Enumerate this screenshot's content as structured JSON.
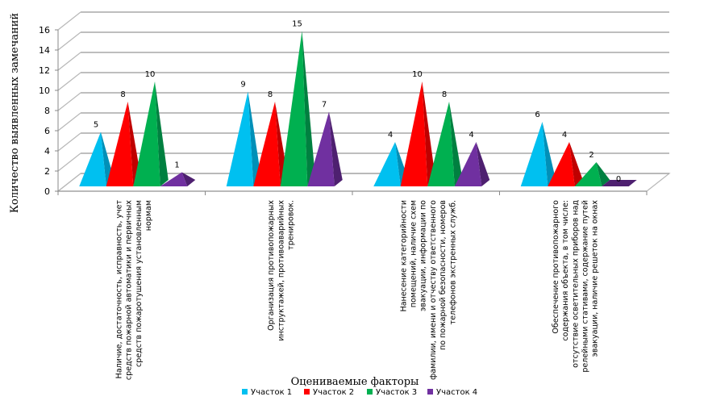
{
  "chart_data": {
    "type": "bar",
    "variant": "3d-pyramid",
    "title": "",
    "xlabel": "Оцениваемые факторы",
    "ylabel": "Количество выявленных замечаний",
    "ylim": [
      0,
      16
    ],
    "yticks": [
      0,
      2,
      4,
      6,
      8,
      10,
      12,
      14,
      16
    ],
    "grid": true,
    "legend_position": "bottom",
    "categories": [
      [
        "Наличие, достаточность, исправность, учет",
        "средств пожарной автоматики и первичных",
        "средств пожаротушения установленным",
        "нормам"
      ],
      [
        "Организация противопожарных",
        "инструктажей, противоаварийных",
        "тренировок."
      ],
      [
        "Нанесение категорийности",
        "помещений, наличие схем",
        "эвакуации, информации по",
        "фамилии, имени и отчеству ответственного",
        "по пожарной безопасности, номеров",
        "телефонов экстренных служб."
      ],
      [
        "Обеспечение противопожарного",
        "содержания объекта, в том числе:",
        "отсутствие осветительных приборов над",
        "релейными стативами, содержание путей",
        "эвакуации, наличие решеток на окнах"
      ]
    ],
    "series": [
      {
        "name": "Участок 1",
        "color": "#00C0F0",
        "shade": "#0090B8",
        "values": [
          5,
          9,
          4,
          6
        ]
      },
      {
        "name": "Участок 2",
        "color": "#FF0000",
        "shade": "#C00000",
        "values": [
          8,
          8,
          10,
          4
        ]
      },
      {
        "name": "Участок 3",
        "color": "#00B050",
        "shade": "#008040",
        "values": [
          10,
          15,
          8,
          2
        ]
      },
      {
        "name": "Участок 4",
        "color": "#7030A0",
        "shade": "#4E2070",
        "values": [
          1,
          7,
          4,
          0
        ]
      }
    ]
  }
}
